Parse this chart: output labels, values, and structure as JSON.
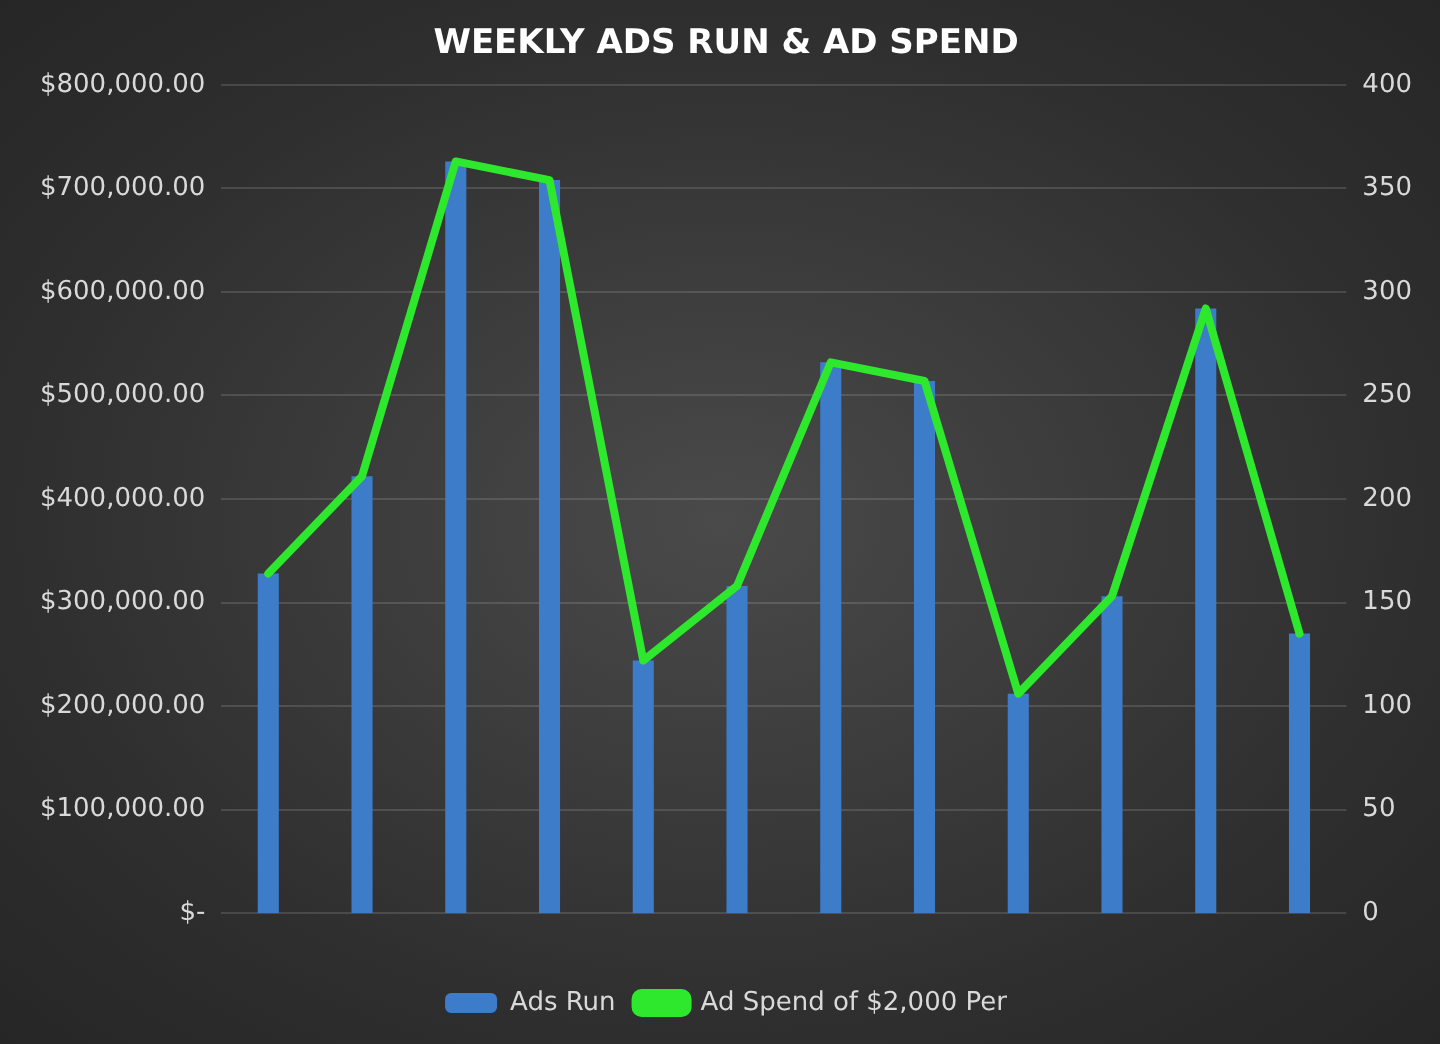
{
  "chart_data": {
    "type": "bar",
    "title": "WEEKLY ADS RUN & AD SPEND",
    "categories": [
      null,
      null,
      null,
      null,
      null,
      null,
      null,
      null,
      null,
      null,
      null,
      null
    ],
    "series": [
      {
        "name": "Ads Run",
        "axis": "y2",
        "color": "#3d7cc9",
        "values": [
          164,
          211,
          363,
          354,
          122,
          158,
          266,
          257,
          106,
          153,
          292,
          135
        ]
      },
      {
        "name": "Ad Spend of $2,000 Per",
        "type": "line",
        "axis": "y",
        "color": "#2ee82e",
        "values": [
          328000,
          422000,
          726000,
          708000,
          244000,
          316000,
          532000,
          514000,
          212000,
          306000,
          584000,
          270000
        ]
      }
    ],
    "ylim": [
      0,
      800000
    ],
    "yticks": [
      {
        "value": 0,
        "label": "$-"
      },
      {
        "value": 100000,
        "label": "$100,000.00"
      },
      {
        "value": 200000,
        "label": "$200,000.00"
      },
      {
        "value": 300000,
        "label": "$300,000.00"
      },
      {
        "value": 400000,
        "label": "$400,000.00"
      },
      {
        "value": 500000,
        "label": "$500,000.00"
      },
      {
        "value": 600000,
        "label": "$600,000.00"
      },
      {
        "value": 700000,
        "label": "$700,000.00"
      },
      {
        "value": 800000,
        "label": "$800,000.00"
      }
    ],
    "y2lim": [
      0,
      400
    ],
    "y2ticks": [
      0,
      50,
      100,
      150,
      200,
      250,
      300,
      350,
      400
    ],
    "grid": "y",
    "legend": "bottom",
    "marker": "none",
    "line_style": "solid"
  }
}
